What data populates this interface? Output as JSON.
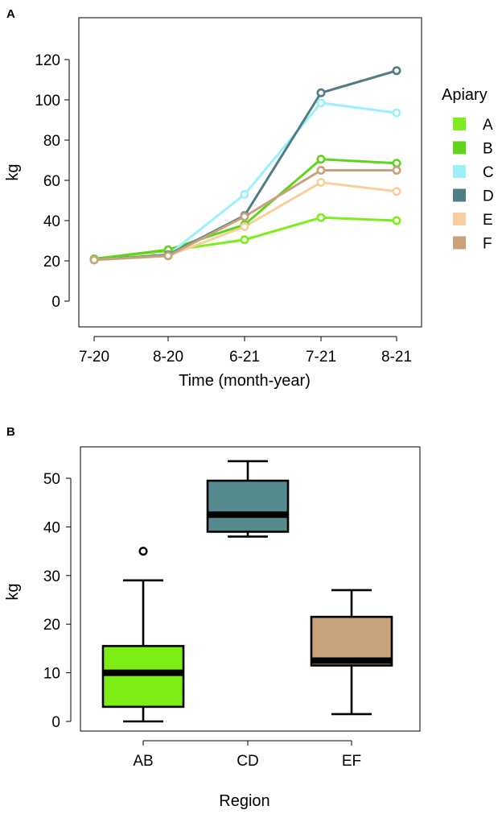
{
  "chart_data": [
    {
      "panel": "A",
      "type": "line",
      "x": [
        "7-20",
        "8-20",
        "6-21",
        "7-21",
        "8-21"
      ],
      "xlabel": "Time (month-year)",
      "ylabel": "kg",
      "ylim": [
        0,
        120
      ],
      "yticks": [
        0,
        20,
        40,
        60,
        80,
        100,
        120
      ],
      "legend": {
        "title": "Apiary",
        "placement": "right"
      },
      "series": [
        {
          "name": "A",
          "color": "#7fec1e",
          "values": [
            21,
            25,
            30.5,
            41.5,
            40
          ]
        },
        {
          "name": "B",
          "color": "#5ed41c",
          "values": [
            21,
            25.5,
            38,
            70.5,
            68.5
          ]
        },
        {
          "name": "C",
          "color": "#9cf0fb",
          "values": [
            20.5,
            23,
            53,
            98.5,
            93.5
          ]
        },
        {
          "name": "D",
          "color": "#4f7d83",
          "values": [
            20.5,
            23,
            42.5,
            103.5,
            114.5
          ]
        },
        {
          "name": "E",
          "color": "#f8ce9b",
          "values": [
            20.5,
            22.5,
            37,
            59,
            54.5
          ]
        },
        {
          "name": "F",
          "color": "#c8a27b",
          "values": [
            20.5,
            22.5,
            42,
            65,
            65
          ]
        }
      ]
    },
    {
      "panel": "B",
      "type": "box",
      "categories": [
        "AB",
        "CD",
        "EF"
      ],
      "xlabel": "Region",
      "ylabel": "kg",
      "ylim": [
        0,
        55
      ],
      "yticks": [
        0,
        10,
        20,
        30,
        40,
        50
      ],
      "boxes": [
        {
          "name": "AB",
          "color": "#7cee14",
          "min": 0,
          "q1": 3,
          "median": 10,
          "q3": 15.5,
          "max": 29,
          "outliers": [
            35
          ]
        },
        {
          "name": "CD",
          "color": "#558b8f",
          "min": 38,
          "q1": 39,
          "median": 42.5,
          "q3": 49.5,
          "max": 53.5,
          "outliers": []
        },
        {
          "name": "EF",
          "color": "#c8a27b",
          "min": 1.5,
          "q1": 11.5,
          "median": 12.5,
          "q3": 21.5,
          "max": 27,
          "outliers": []
        }
      ]
    }
  ]
}
